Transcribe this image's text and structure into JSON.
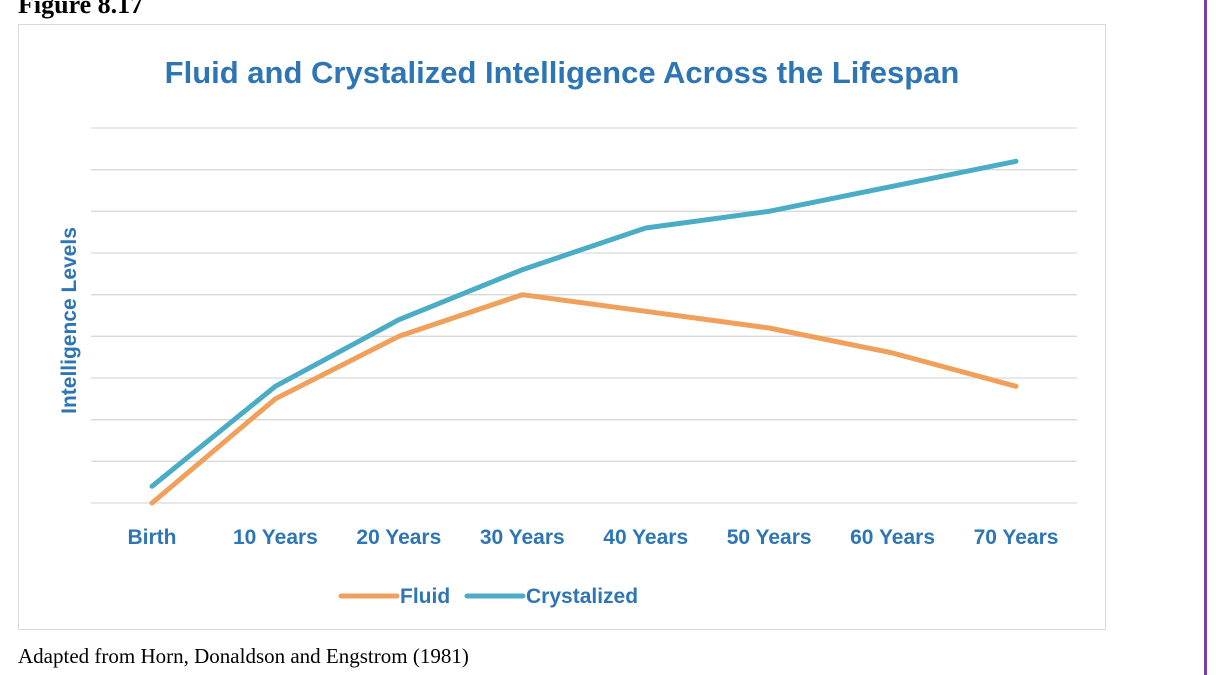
{
  "figure_label": "Figure 8.17",
  "caption": "Adapted from Horn, Donaldson and Engstrom (1981)",
  "colors": {
    "title": "#2e75b6",
    "axis_text": "#2e75b6",
    "fluid": "#f0a05a",
    "crystalized": "#4bacc6",
    "gridline": "#d9d9d9",
    "right_rule": "#7b3fa8"
  },
  "chart_data": {
    "type": "line",
    "title": "Fluid and Crystalized Intelligence Across the Lifespan",
    "xlabel": "",
    "ylabel": "Intelligence Levels",
    "categories": [
      "Birth",
      "10 Years",
      "20 Years",
      "30 Years",
      "40 Years",
      "50 Years",
      "60 Years",
      "70 Years"
    ],
    "series": [
      {
        "name": "Fluid",
        "values": [
          0,
          2.5,
          4.0,
          5.0,
          4.6,
          4.2,
          3.6,
          2.8
        ]
      },
      {
        "name": "Crystalized",
        "values": [
          0.4,
          2.8,
          4.4,
          5.6,
          6.6,
          7.0,
          7.6,
          8.2
        ]
      }
    ],
    "ylim": [
      0,
      9
    ],
    "grid": true,
    "y_tick_labels_shown": false,
    "legend_position": "bottom"
  }
}
